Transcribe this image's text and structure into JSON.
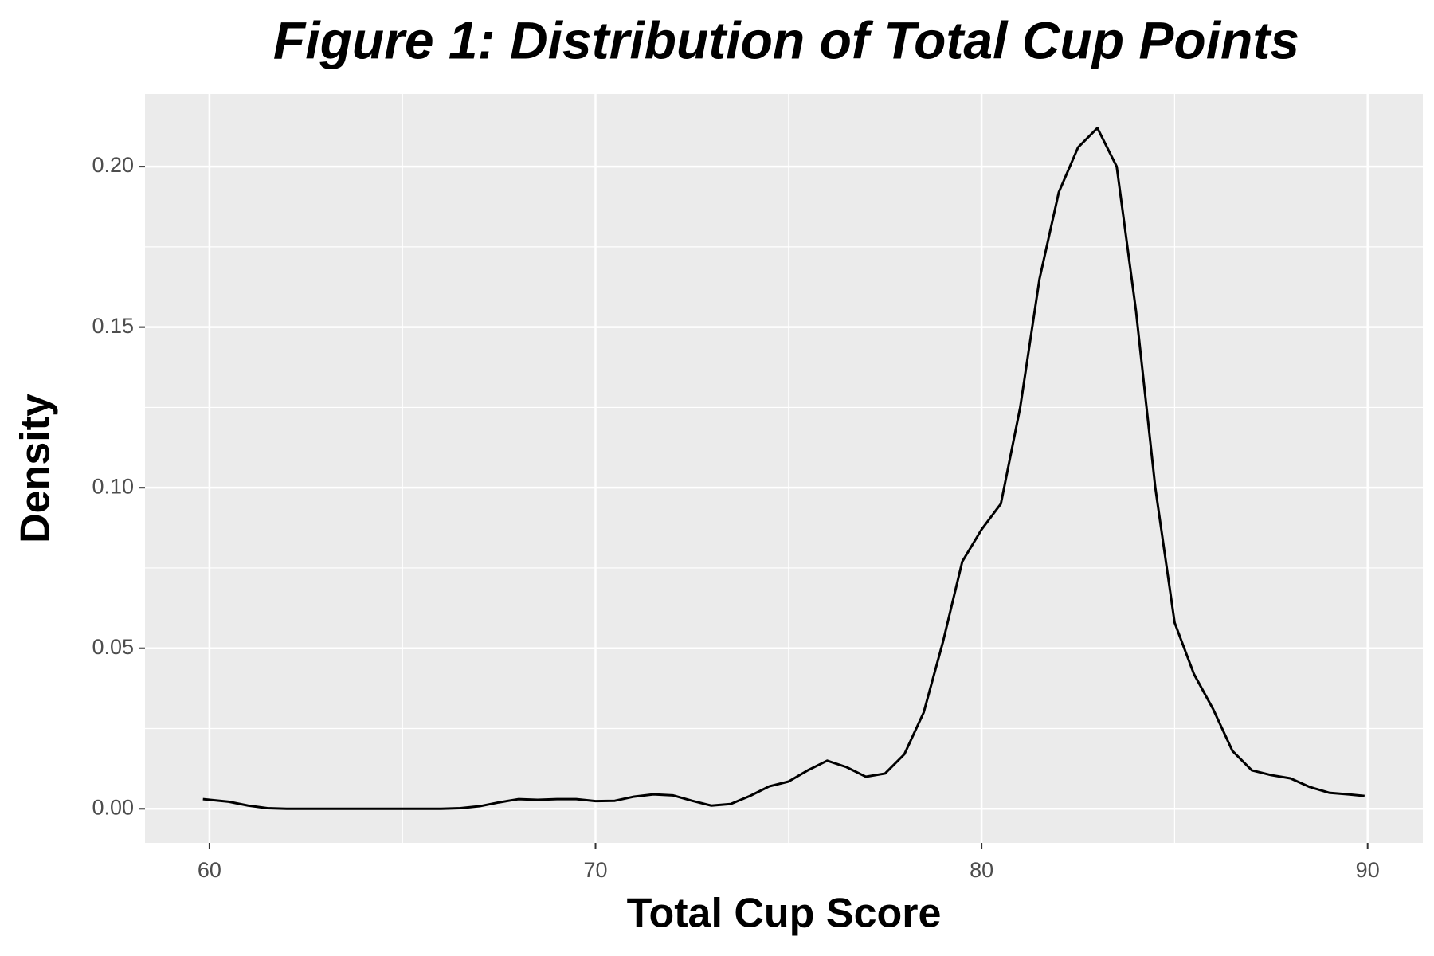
{
  "chart_data": {
    "type": "line",
    "title": "Figure 1: Distribution of Total Cup Points",
    "x_label": "Total Cup Score",
    "y_label": "Density",
    "x": [
      59.83,
      60.5,
      61,
      61.5,
      62,
      63,
      64,
      65,
      66,
      66.5,
      67,
      67.5,
      68,
      68.5,
      69,
      69.5,
      70,
      70.5,
      71,
      71.5,
      72,
      72.5,
      73,
      73.5,
      74,
      74.5,
      75,
      75.5,
      76,
      76.5,
      77,
      77.5,
      78,
      78.5,
      79,
      79.5,
      80,
      80.5,
      81,
      81.5,
      82,
      82.5,
      83,
      83.5,
      84,
      84.5,
      85,
      85.5,
      86,
      86.5,
      87,
      87.5,
      88,
      88.5,
      89,
      89.5,
      89.92
    ],
    "values": [
      0.003,
      0.0022,
      0.001,
      0.0002,
      0,
      0,
      0,
      0,
      0,
      0.0002,
      0.0008,
      0.002,
      0.003,
      0.0028,
      0.003,
      0.003,
      0.0024,
      0.0025,
      0.0038,
      0.0045,
      0.0042,
      0.0025,
      0.001,
      0.0015,
      0.004,
      0.007,
      0.0085,
      0.012,
      0.015,
      0.013,
      0.01,
      0.011,
      0.017,
      0.03,
      0.052,
      0.077,
      0.087,
      0.095,
      0.125,
      0.165,
      0.192,
      0.206,
      0.212,
      0.2,
      0.155,
      0.1,
      0.058,
      0.042,
      0.031,
      0.018,
      0.012,
      0.0105,
      0.0095,
      0.0068,
      0.005,
      0.0045,
      0.004
    ],
    "color": "#000000",
    "xlim": [
      58.33,
      91.43
    ],
    "ylim": [
      -0.0106,
      0.2226
    ],
    "xticks": [
      60,
      70,
      80,
      90
    ],
    "yticks": [
      {
        "value": 0,
        "label": "0.00"
      },
      {
        "value": 0.05,
        "label": "0.05"
      },
      {
        "value": 0.1,
        "label": "0.10"
      },
      {
        "value": 0.15,
        "label": "0.15"
      },
      {
        "value": 0.2,
        "label": "0.20"
      }
    ],
    "x_minor_grid": [
      65,
      75,
      85
    ],
    "y_minor_grid": [
      0.025,
      0.075,
      0.125,
      0.175
    ],
    "grid": true
  }
}
